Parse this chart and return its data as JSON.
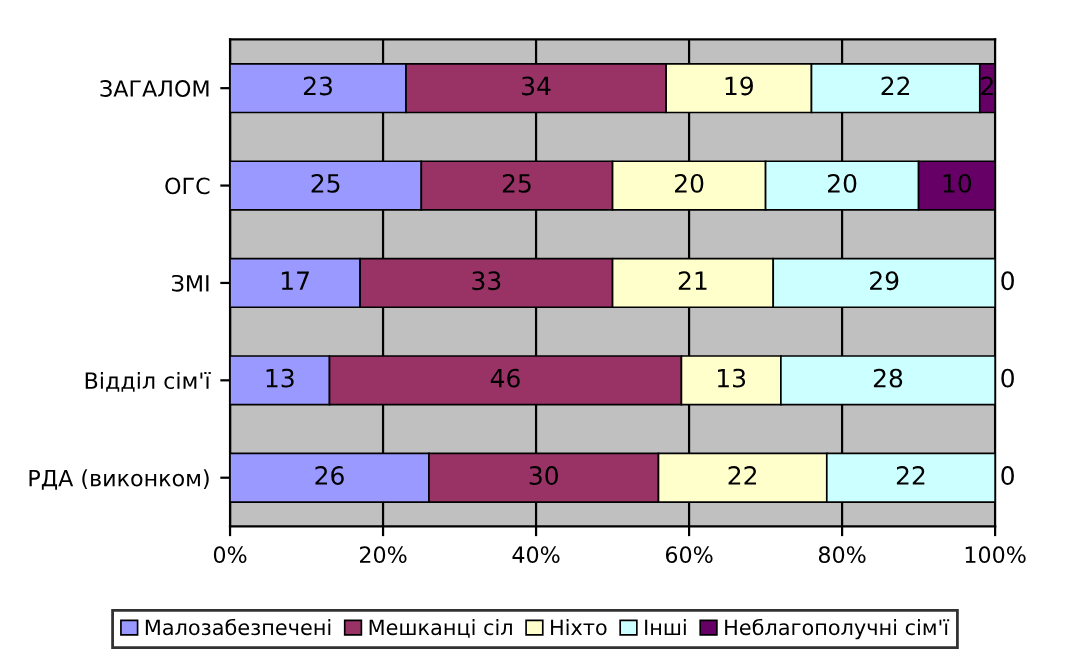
{
  "chart_data": {
    "type": "bar",
    "orientation": "horizontal",
    "stacked": true,
    "categories": [
      "ЗАГАЛОМ",
      "ОГС",
      "ЗМІ",
      "Відділ сім'ї",
      "РДА (виконком)"
    ],
    "series": [
      {
        "name": "Малозабезпечені",
        "color": "#9999ff",
        "values": [
          23,
          25,
          17,
          13,
          26
        ]
      },
      {
        "name": "Мешканці сіл",
        "color": "#993366",
        "values": [
          34,
          25,
          33,
          46,
          30
        ]
      },
      {
        "name": "Ніхто",
        "color": "#ffffcc",
        "values": [
          19,
          20,
          21,
          13,
          22
        ]
      },
      {
        "name": "Інші",
        "color": "#ccffff",
        "values": [
          22,
          20,
          29,
          28,
          22
        ]
      },
      {
        "name": "Неблагополучні сім'ї",
        "color": "#660066",
        "values": [
          2,
          10,
          0,
          0,
          0
        ]
      }
    ],
    "xlim": [
      0,
      100
    ],
    "xticks": [
      {
        "value": 0,
        "label": "0%"
      },
      {
        "value": 20,
        "label": "20%"
      },
      {
        "value": 40,
        "label": "40%"
      },
      {
        "value": 60,
        "label": "60%"
      },
      {
        "value": 80,
        "label": "80%"
      },
      {
        "value": 100,
        "label": "100%"
      }
    ],
    "data_labels": true,
    "grid": "x",
    "legend": "bottom"
  }
}
